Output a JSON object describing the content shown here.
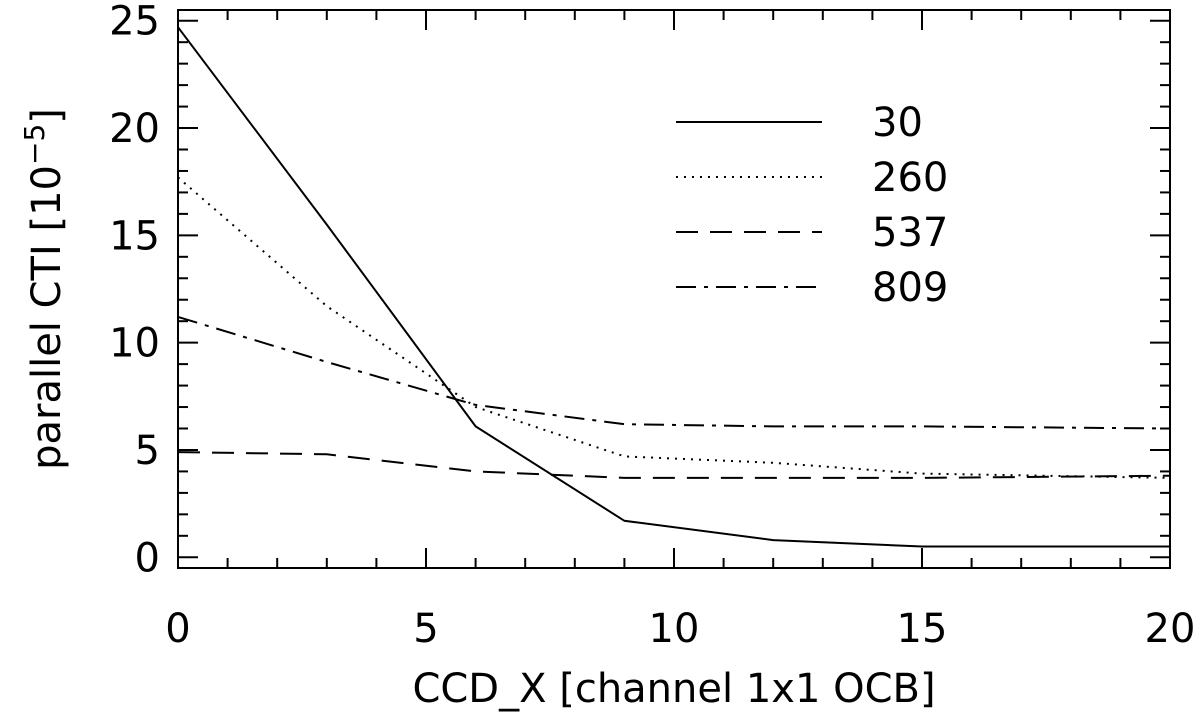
{
  "chart_data": {
    "type": "line",
    "title": "",
    "xlabel": "CCD_X [channel 1x1 OCB]",
    "ylabel": "parallel CTI [10",
    "ylabel_exponent": "−5",
    "ylabel_suffix": "]",
    "xlim": [
      0,
      20
    ],
    "ylim": [
      -0.5,
      25.5
    ],
    "x_ticks": [
      0,
      5,
      10,
      15,
      20
    ],
    "y_ticks": [
      0,
      5,
      10,
      15,
      20,
      25
    ],
    "grid": false,
    "legend_position": "top-right",
    "series": [
      {
        "name": "30",
        "style": "solid",
        "x": [
          0,
          3,
          6,
          9,
          12,
          15,
          20
        ],
        "y": [
          24.7,
          15.5,
          6.1,
          1.7,
          0.8,
          0.5,
          0.5
        ]
      },
      {
        "name": "260",
        "style": "dotted",
        "x": [
          0,
          3,
          6,
          9,
          12,
          15,
          20
        ],
        "y": [
          17.7,
          11.7,
          7.0,
          4.7,
          4.4,
          3.9,
          3.7
        ]
      },
      {
        "name": "537",
        "style": "dashed",
        "x": [
          0,
          3,
          6,
          9,
          12,
          15,
          20
        ],
        "y": [
          4.9,
          4.8,
          4.0,
          3.7,
          3.7,
          3.7,
          3.8
        ]
      },
      {
        "name": "809",
        "style": "dashdot",
        "x": [
          0,
          3,
          6,
          9,
          12,
          15,
          20
        ],
        "y": [
          11.2,
          9.1,
          7.1,
          6.2,
          6.1,
          6.1,
          6.0
        ]
      }
    ]
  }
}
